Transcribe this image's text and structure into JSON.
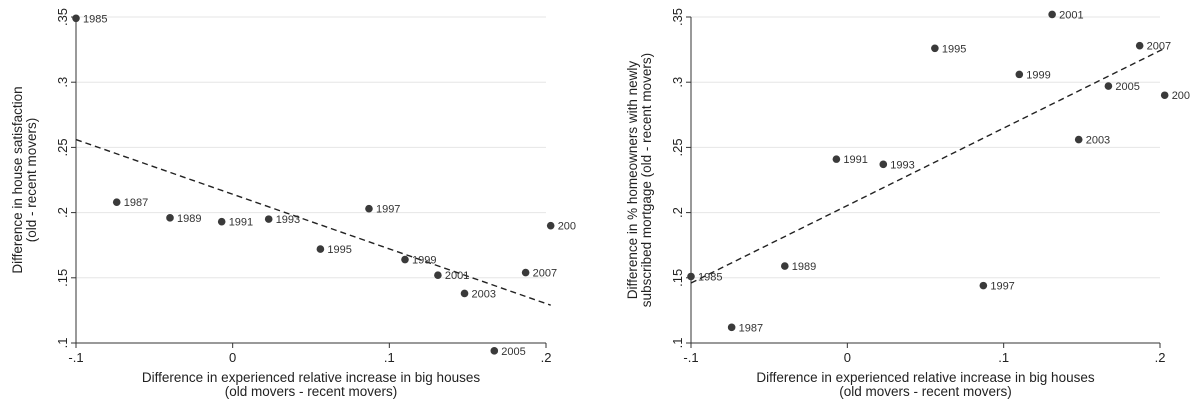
{
  "chart_data": [
    {
      "type": "scatter",
      "xlabel": [
        "Difference in experienced relative increase in big houses",
        "(old movers - recent movers)"
      ],
      "ylabel": [
        "Difference in house satisfaction",
        "(old - recent movers)"
      ],
      "xlim": [
        -0.1,
        0.2
      ],
      "ylim": [
        0.1,
        0.35
      ],
      "xticks": [
        "-.1",
        "0",
        ".1",
        ".2"
      ],
      "yticks": [
        ".1",
        ".15",
        ".2",
        ".25",
        ".3",
        ".35"
      ],
      "grid": true,
      "points": [
        {
          "label": "1985",
          "x": -0.1,
          "y": 0.349
        },
        {
          "label": "1987",
          "x": -0.074,
          "y": 0.208
        },
        {
          "label": "1989",
          "x": -0.04,
          "y": 0.196
        },
        {
          "label": "1991",
          "x": -0.007,
          "y": 0.193
        },
        {
          "label": "1993",
          "x": 0.023,
          "y": 0.195
        },
        {
          "label": "1995",
          "x": 0.056,
          "y": 0.172
        },
        {
          "label": "1997",
          "x": 0.087,
          "y": 0.203
        },
        {
          "label": "1999",
          "x": 0.11,
          "y": 0.164
        },
        {
          "label": "2001",
          "x": 0.131,
          "y": 0.152
        },
        {
          "label": "2003",
          "x": 0.148,
          "y": 0.138
        },
        {
          "label": "2005",
          "x": 0.167,
          "y": 0.094
        },
        {
          "label": "2007",
          "x": 0.187,
          "y": 0.154
        },
        {
          "label": "200",
          "x": 0.203,
          "y": 0.19
        }
      ],
      "fit_line": {
        "x1": -0.1,
        "y1": 0.256,
        "x2": 0.203,
        "y2": 0.129
      }
    },
    {
      "type": "scatter",
      "xlabel": [
        "Difference in experienced relative increase in big houses",
        "(old movers - recent movers)"
      ],
      "ylabel": [
        "Difference in % homeowners with newly",
        "subscribed mortgage (old - recent movers)"
      ],
      "xlim": [
        -0.1,
        0.2
      ],
      "ylim": [
        0.1,
        0.35
      ],
      "xticks": [
        "-.1",
        "0",
        ".1",
        ".2"
      ],
      "yticks": [
        ".1",
        ".15",
        ".2",
        ".25",
        ".3",
        ".35"
      ],
      "grid": true,
      "points": [
        {
          "label": "1985",
          "x": -0.1,
          "y": 0.151
        },
        {
          "label": "1987",
          "x": -0.074,
          "y": 0.112
        },
        {
          "label": "1989",
          "x": -0.04,
          "y": 0.159
        },
        {
          "label": "1991",
          "x": -0.007,
          "y": 0.241
        },
        {
          "label": "1993",
          "x": 0.023,
          "y": 0.237
        },
        {
          "label": "1995",
          "x": 0.056,
          "y": 0.326
        },
        {
          "label": "1997",
          "x": 0.087,
          "y": 0.144
        },
        {
          "label": "1999",
          "x": 0.11,
          "y": 0.306
        },
        {
          "label": "2001",
          "x": 0.131,
          "y": 0.352
        },
        {
          "label": "2003",
          "x": 0.148,
          "y": 0.256
        },
        {
          "label": "2005",
          "x": 0.167,
          "y": 0.297
        },
        {
          "label": "2007",
          "x": 0.187,
          "y": 0.328
        },
        {
          "label": "200",
          "x": 0.203,
          "y": 0.29
        }
      ],
      "fit_line": {
        "x1": -0.1,
        "y1": 0.146,
        "x2": 0.203,
        "y2": 0.326
      }
    }
  ]
}
